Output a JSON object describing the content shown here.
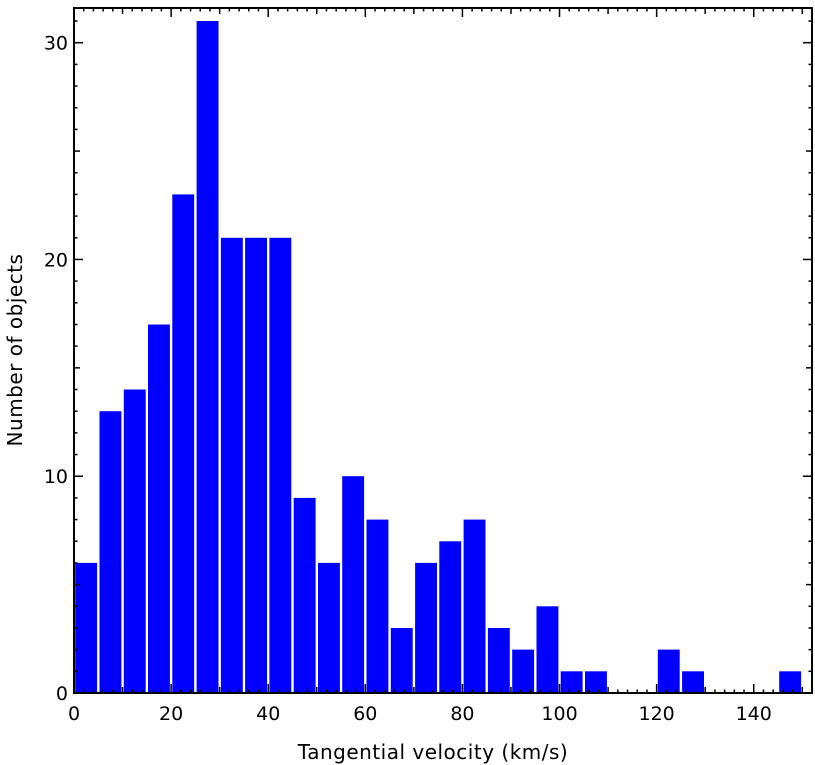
{
  "chart_data": {
    "type": "bar",
    "title": "",
    "xlabel": "Tangential velocity (km/s)",
    "ylabel": "Number of objects",
    "xlim": [
      0,
      152
    ],
    "ylim": [
      0,
      31.6
    ],
    "bin_width": 5,
    "x": [
      2.5,
      7.5,
      12.5,
      17.5,
      22.5,
      27.5,
      32.5,
      37.5,
      42.5,
      47.5,
      52.5,
      57.5,
      62.5,
      67.5,
      72.5,
      77.5,
      82.5,
      87.5,
      92.5,
      97.5,
      102.5,
      107.5,
      112.5,
      117.5,
      122.5,
      127.5,
      132.5,
      137.5,
      142.5,
      147.5
    ],
    "values": [
      6,
      13,
      14,
      17,
      23,
      31,
      21,
      21,
      21,
      9,
      6,
      10,
      8,
      3,
      6,
      7,
      8,
      3,
      2,
      4,
      1,
      1,
      0,
      0,
      2,
      1,
      0,
      0,
      0,
      1
    ],
    "x_ticks": [
      "0",
      "20",
      "40",
      "60",
      "80",
      "100",
      "120",
      "140"
    ],
    "y_ticks": [
      "0",
      "10",
      "20",
      "30"
    ],
    "bar_color": "#0000ff",
    "grid": false,
    "legend": "none"
  }
}
